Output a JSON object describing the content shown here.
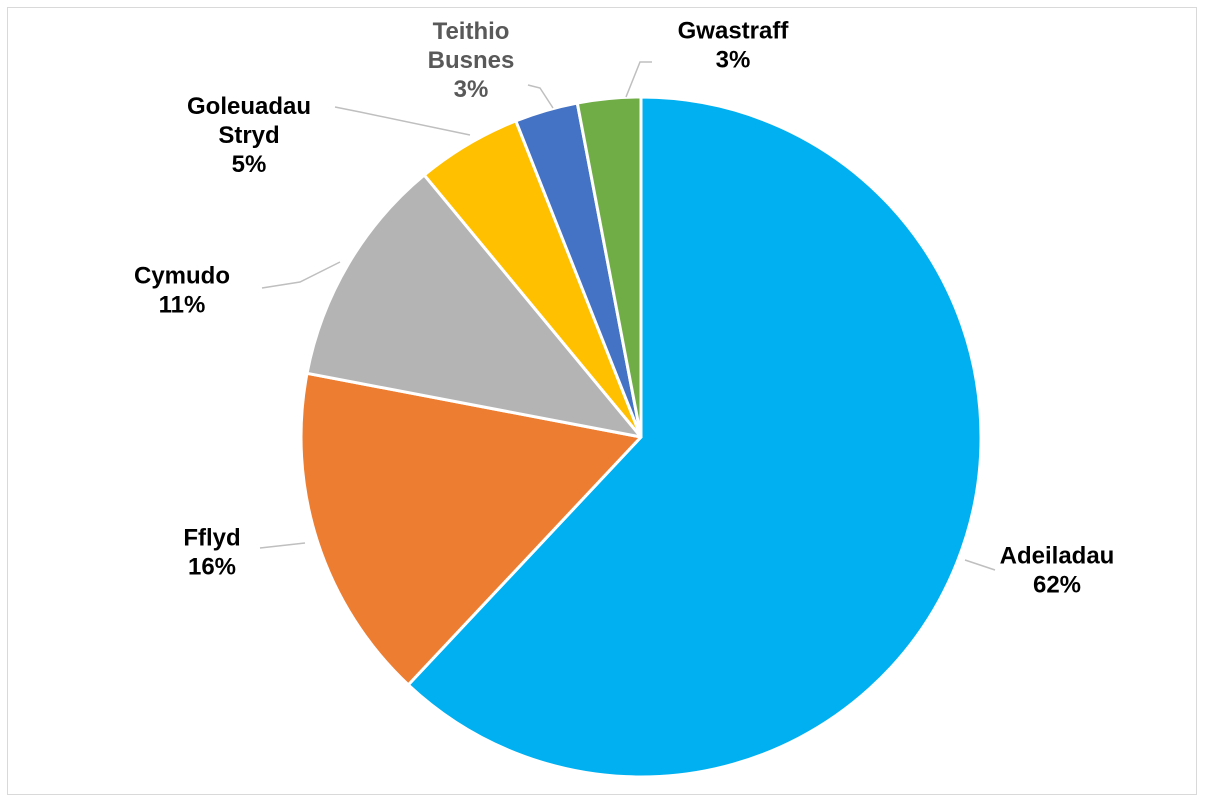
{
  "chart_data": {
    "type": "pie",
    "slices": [
      {
        "label": "Adeiladau",
        "percent_label": "62%",
        "value": 62,
        "color": "#00b0f0",
        "label_color": "#000000"
      },
      {
        "label": "Fflyd",
        "percent_label": "16%",
        "value": 16,
        "color": "#ed7d31",
        "label_color": "#000000"
      },
      {
        "label": "Cymudo",
        "percent_label": "11%",
        "value": 11,
        "color": "#b4b4b4",
        "label_color": "#000000"
      },
      {
        "label": "Goleuadau Stryd",
        "percent_label": "5%",
        "value": 5,
        "color": "#ffc000",
        "label_color": "#000000"
      },
      {
        "label": "Teithio Busnes",
        "percent_label": "3%",
        "value": 3,
        "color": "#4472c4",
        "label_color": "#595959"
      },
      {
        "label": "Gwastraff",
        "percent_label": "3%",
        "value": 3,
        "color": "#70ad47",
        "label_color": "#000000"
      }
    ],
    "start_angle_deg": 0,
    "direction": "clockwise",
    "legend": "none"
  }
}
